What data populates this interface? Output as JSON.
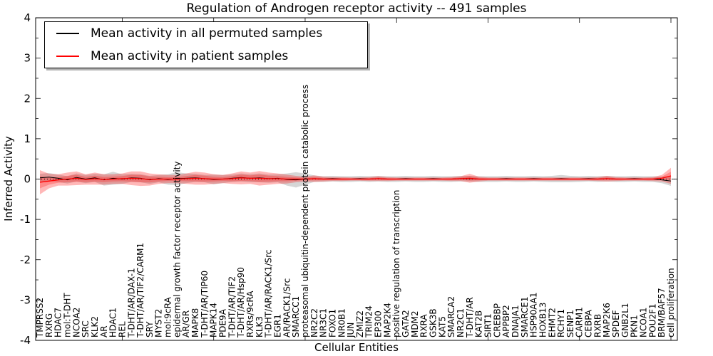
{
  "chart_data": {
    "type": "line",
    "title": "Regulation of Androgen receptor activity -- 491 samples",
    "xlabel": "Cellular Entities",
    "ylabel": "Inferred Activity",
    "ylim": [
      -4,
      4
    ],
    "yticks": [
      4,
      3,
      2,
      1,
      0,
      -1,
      -2,
      -3,
      -4
    ],
    "grid": false,
    "legend_position": "upper left",
    "zero_line": "dotted-black",
    "colors": {
      "permuted_line": "#000000",
      "permuted_band": "#808080",
      "patient_line": "#ff0000",
      "patient_band": "#ff0000"
    },
    "categories": [
      "TMPRSS2",
      "RXRG",
      "HDAC7",
      "mol:T-DHT",
      "NCOA2",
      "SRC",
      "KLK2",
      "AR",
      "HDAC1",
      "REL",
      "T-DHT/AR/DAX-1",
      "T-DHT/AR/TIF2/CARM1",
      "SRY",
      "MYST2",
      "mol:9cRA",
      "epidermal growth factor receptor activity",
      "AR/GR",
      "MAPK8",
      "T-DHT/AR/TIP60",
      "MAPK14",
      "PDE9A",
      "T-DHT/AR/TIF2",
      "T-DHT/AR/Hsp90",
      "RXRs/9cRA",
      "KLK3",
      "T-DHT/AR/RACK1/Src",
      "EGR1",
      "AR/RACK1/Src",
      "SMARCC1",
      "proteasomal ubiquitin-dependent protein catabolic process",
      "NR2C2",
      "NR3C1",
      "FOXO1",
      "NR0B1",
      "JUN",
      "ZMIZ2",
      "TRIM24",
      "EP300",
      "MAP2K4",
      "positive regulation of transcription",
      "GATA2",
      "MDM2",
      "RXRA",
      "GSK3B",
      "KAT5",
      "SMARCA2",
      "NR2C1",
      "T-DHT/AR",
      "KAT2B",
      "SIRT1",
      "CREBBP",
      "APPBP2",
      "DNAJA1",
      "SMARCE1",
      "HSP90AA1",
      "HOXB13",
      "EHMT2",
      "RCHY1",
      "SENP1",
      "CARM1",
      "CEBPA",
      "RXRB",
      "MAP2K6",
      "SPDEF",
      "GNB2L1",
      "PKN1",
      "NCOA1",
      "POU2F1",
      "BRM/BAF57",
      "cell proliferation"
    ],
    "series": [
      {
        "name": "Mean activity in all permuted samples",
        "color": "#000000",
        "values": [
          0.03,
          0.05,
          0.02,
          -0.02,
          0.04,
          0.0,
          0.03,
          -0.02,
          0.02,
          0.0,
          0.03,
          0.02,
          -0.02,
          0.01,
          -0.01,
          0.01,
          0.02,
          0.03,
          0.01,
          -0.01,
          0.0,
          0.02,
          0.04,
          0.02,
          0.03,
          0.01,
          0.02,
          -0.01,
          -0.02,
          0.0,
          0.01,
          0.0,
          0.01,
          0.0,
          0.0,
          0.01,
          0.0,
          0.01,
          0.0,
          0.0,
          0.01,
          0.0,
          0.0,
          0.01,
          0.0,
          0.0,
          0.01,
          0.01,
          0.0,
          0.0,
          0.0,
          0.01,
          0.0,
          0.0,
          0.01,
          0.0,
          0.0,
          0.01,
          0.0,
          0.0,
          0.01,
          0.0,
          0.01,
          0.0,
          0.0,
          0.01,
          0.0,
          0.0,
          -0.02,
          -0.05
        ],
        "band_halfwidth": [
          0.1,
          0.1,
          0.09,
          0.09,
          0.1,
          0.1,
          0.1,
          0.14,
          0.16,
          0.12,
          0.1,
          0.1,
          0.1,
          0.09,
          0.13,
          0.16,
          0.12,
          0.1,
          0.09,
          0.12,
          0.1,
          0.09,
          0.1,
          0.1,
          0.11,
          0.1,
          0.1,
          0.15,
          0.19,
          0.14,
          0.08,
          0.07,
          0.07,
          0.07,
          0.07,
          0.07,
          0.07,
          0.07,
          0.07,
          0.07,
          0.07,
          0.07,
          0.07,
          0.07,
          0.07,
          0.07,
          0.07,
          0.07,
          0.07,
          0.07,
          0.07,
          0.07,
          0.07,
          0.07,
          0.07,
          0.07,
          0.08,
          0.09,
          0.08,
          0.07,
          0.07,
          0.07,
          0.07,
          0.07,
          0.07,
          0.07,
          0.07,
          0.07,
          0.08,
          0.12
        ]
      },
      {
        "name": "Mean activity in patient samples",
        "color": "#ff0000",
        "values": [
          -0.08,
          -0.05,
          -0.02,
          0.0,
          0.02,
          -0.01,
          0.01,
          -0.01,
          0.0,
          0.01,
          0.02,
          0.01,
          -0.01,
          0.0,
          0.0,
          0.0,
          0.01,
          0.02,
          0.01,
          0.0,
          0.0,
          0.01,
          0.03,
          0.02,
          0.02,
          0.01,
          0.01,
          0.0,
          0.0,
          0.0,
          0.01,
          0.0,
          0.0,
          0.0,
          0.0,
          0.0,
          0.0,
          0.01,
          0.0,
          0.0,
          0.0,
          0.0,
          0.0,
          0.0,
          0.0,
          0.0,
          0.01,
          0.02,
          0.0,
          0.0,
          0.0,
          0.0,
          0.0,
          0.0,
          0.0,
          0.0,
          0.0,
          0.0,
          0.0,
          0.0,
          0.0,
          0.0,
          0.01,
          0.0,
          0.0,
          0.0,
          0.0,
          0.0,
          0.02,
          0.08
        ],
        "band_halfwidth": [
          0.3,
          0.18,
          0.14,
          0.16,
          0.17,
          0.13,
          0.15,
          0.13,
          0.12,
          0.13,
          0.17,
          0.18,
          0.15,
          0.12,
          0.1,
          0.1,
          0.13,
          0.16,
          0.15,
          0.12,
          0.1,
          0.13,
          0.16,
          0.14,
          0.18,
          0.15,
          0.13,
          0.11,
          0.08,
          0.06,
          0.08,
          0.06,
          0.05,
          0.05,
          0.04,
          0.04,
          0.05,
          0.06,
          0.05,
          0.04,
          0.04,
          0.04,
          0.04,
          0.04,
          0.04,
          0.05,
          0.06,
          0.11,
          0.06,
          0.04,
          0.04,
          0.04,
          0.04,
          0.04,
          0.04,
          0.04,
          0.04,
          0.04,
          0.04,
          0.04,
          0.04,
          0.05,
          0.07,
          0.05,
          0.04,
          0.04,
          0.04,
          0.05,
          0.08,
          0.2
        ]
      }
    ]
  }
}
